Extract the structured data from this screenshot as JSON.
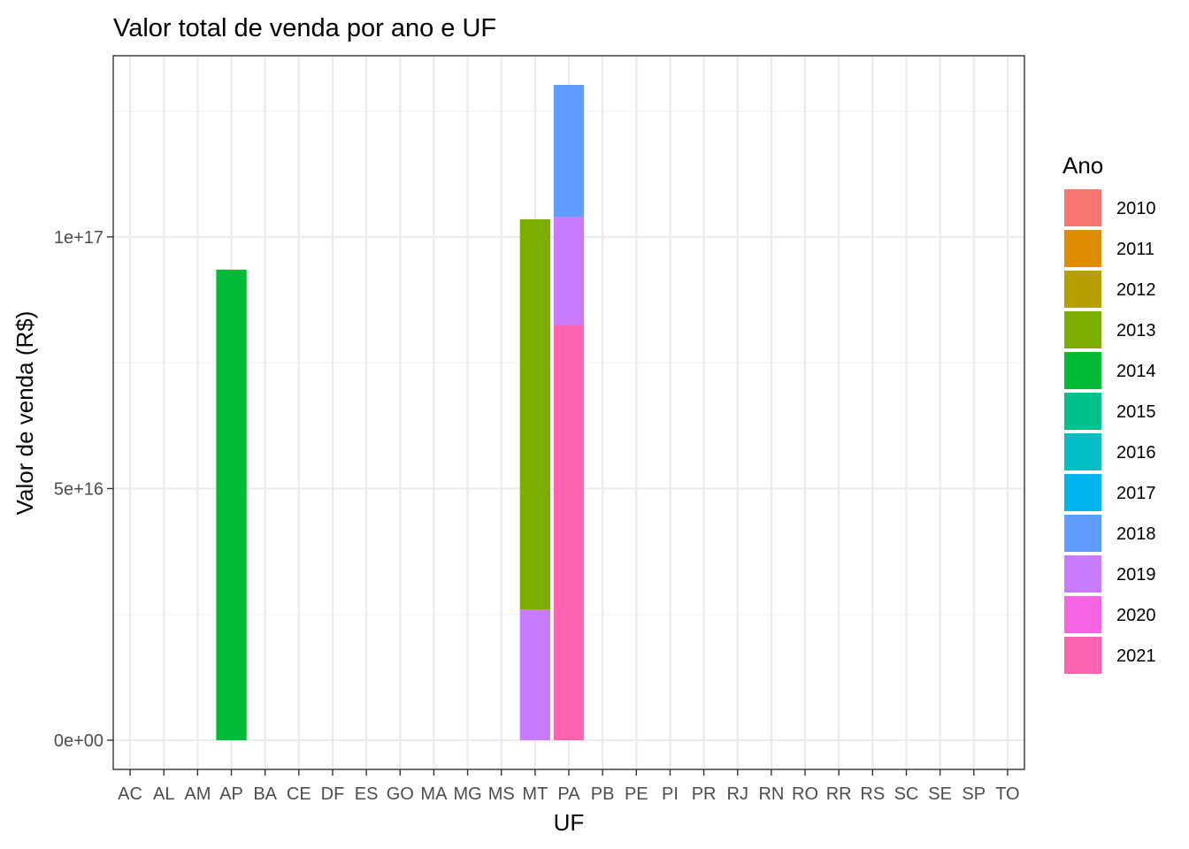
{
  "chart_data": {
    "type": "bar",
    "stacked": true,
    "title": "Valor total de venda por ano e UF",
    "xlabel": "UF",
    "ylabel": "Valor de venda (R$)",
    "ylim": [
      -5800000000000000.0,
      1.36e+17
    ],
    "yticks": [
      0,
      5e+16,
      1e+17
    ],
    "ytick_labels": [
      "0e+00",
      "5e+16",
      "1e+17"
    ],
    "grid": true,
    "legend_title": "Ano",
    "legend_position": "right",
    "categories": [
      "AC",
      "AL",
      "AM",
      "AP",
      "BA",
      "CE",
      "DF",
      "ES",
      "GO",
      "MA",
      "MG",
      "MS",
      "MT",
      "PA",
      "PB",
      "PE",
      "PI",
      "PR",
      "RJ",
      "RN",
      "RO",
      "RR",
      "RS",
      "SC",
      "SE",
      "SP",
      "TO"
    ],
    "years": [
      "2010",
      "2011",
      "2012",
      "2013",
      "2014",
      "2015",
      "2016",
      "2017",
      "2018",
      "2019",
      "2020",
      "2021"
    ],
    "colors": {
      "2010": "#F8766D",
      "2011": "#DE8C00",
      "2012": "#B79F00",
      "2013": "#7CAE00",
      "2014": "#00BA38",
      "2015": "#00C08B",
      "2016": "#00BFC4",
      "2017": "#00B4F0",
      "2018": "#619CFF",
      "2019": "#C77CFF",
      "2020": "#F564E3",
      "2021": "#FF64B0"
    },
    "series": [
      {
        "name": "2013",
        "values": {
          "MT": 7.75e+16
        }
      },
      {
        "name": "2014",
        "values": {
          "AP": 9.35e+16
        }
      },
      {
        "name": "2018",
        "values": {
          "PA": 2.62e+16
        }
      },
      {
        "name": "2019",
        "values": {
          "MT": 2.6e+16,
          "PA": 2.15e+16
        }
      },
      {
        "name": "2021",
        "values": {
          "PA": 8.25e+16
        }
      }
    ]
  }
}
